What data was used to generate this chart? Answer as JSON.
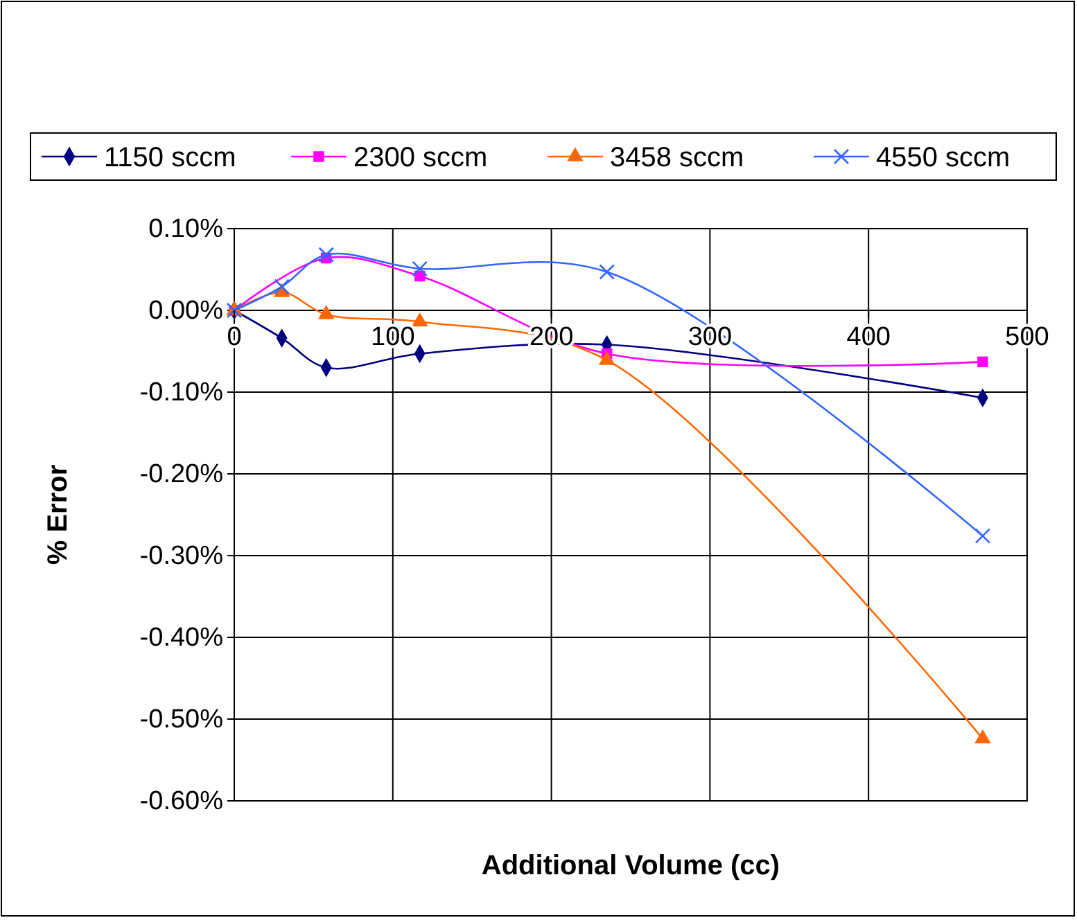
{
  "chart_data": {
    "type": "line",
    "xlabel": "Additional Volume (cc)",
    "ylabel": "% Error",
    "x": [
      0,
      30,
      58,
      117,
      235,
      472
    ],
    "series": [
      {
        "name": "1150 sccm",
        "color": "#000080",
        "marker": "diamond",
        "values": [
          0,
          -0.034,
          -0.07,
          -0.053,
          -0.042,
          -0.107
        ]
      },
      {
        "name": "2300 sccm",
        "color": "#ff00ff",
        "marker": "square",
        "values": [
          0,
          null,
          0.064,
          0.042,
          -0.053,
          -0.063
        ]
      },
      {
        "name": "3458 sccm",
        "color": "#ff6600",
        "marker": "triangle",
        "values": [
          0,
          0.022,
          -0.005,
          -0.014,
          -0.061,
          -0.524
        ]
      },
      {
        "name": "4550 sccm",
        "color": "#3366ff",
        "marker": "cross",
        "values": [
          0,
          0.029,
          0.068,
          0.051,
          0.047,
          -0.276
        ]
      }
    ],
    "xlim": [
      0,
      500
    ],
    "xticks": [
      0,
      100,
      200,
      300,
      400,
      500
    ],
    "ylim": [
      -0.6,
      0.1
    ],
    "yticks": [
      {
        "value": -0.6,
        "label": "-0.60%"
      },
      {
        "value": -0.5,
        "label": "-0.50%"
      },
      {
        "value": -0.4,
        "label": "-0.40%"
      },
      {
        "value": -0.3,
        "label": "-0.30%"
      },
      {
        "value": -0.2,
        "label": "-0.20%"
      },
      {
        "value": -0.1,
        "label": "-0.10%"
      },
      {
        "value": 0,
        "label": "0.00%"
      },
      {
        "value": 0.1,
        "label": "0.10%"
      }
    ],
    "grid": true,
    "legend": "top",
    "line_style": "solid"
  }
}
